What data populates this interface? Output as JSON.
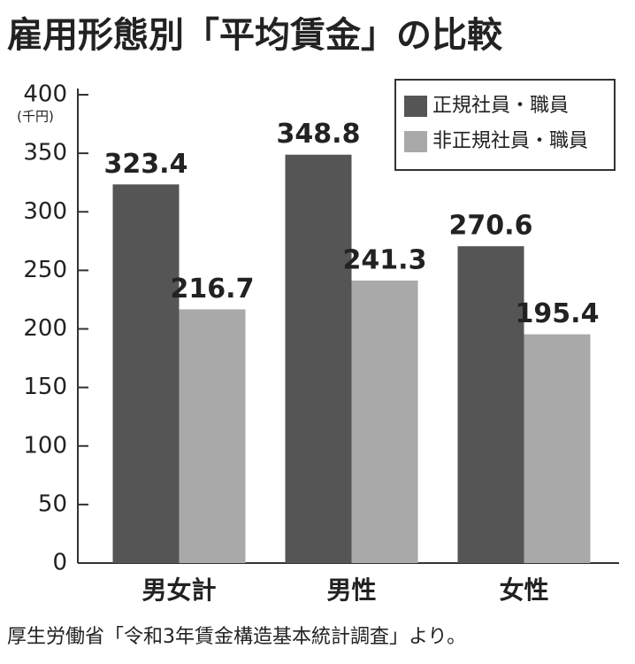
{
  "chart_data": {
    "type": "bar",
    "title": "雇用形態別「平均賃金」の比較",
    "ylabel": "(千円)",
    "categories": [
      "男女計",
      "男性",
      "女性"
    ],
    "series": [
      {
        "name": "正規社員・職員",
        "color": "#555555",
        "values": [
          323.4,
          348.8,
          270.6
        ]
      },
      {
        "name": "非正規社員・職員",
        "color": "#a9a9a9",
        "values": [
          216.7,
          241.3,
          195.4
        ]
      }
    ],
    "ylim": [
      0,
      400
    ],
    "yticks": [
      0,
      50,
      100,
      150,
      200,
      250,
      300,
      350,
      400
    ],
    "legend": "upper right",
    "source": "厚生労働省「令和3年賃金構造基本統計調査」より。"
  }
}
